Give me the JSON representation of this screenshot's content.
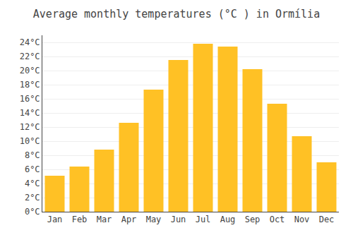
{
  "chart_data": {
    "type": "bar",
    "title": "Average monthly temperatures (°C ) in Ormília",
    "categories": [
      "Jan",
      "Feb",
      "Mar",
      "Apr",
      "May",
      "Jun",
      "Jul",
      "Aug",
      "Sep",
      "Oct",
      "Nov",
      "Dec"
    ],
    "values": [
      5.1,
      6.4,
      8.8,
      12.6,
      17.3,
      21.5,
      23.8,
      23.4,
      20.2,
      15.3,
      10.7,
      7.0
    ],
    "color": "#FFC125",
    "ylim": [
      0,
      25
    ],
    "yticks": [
      {
        "value": 0,
        "label": "0°C"
      },
      {
        "value": 2,
        "label": "2°C"
      },
      {
        "value": 4,
        "label": "4°C"
      },
      {
        "value": 6,
        "label": "6°C"
      },
      {
        "value": 8,
        "label": "8°C"
      },
      {
        "value": 10,
        "label": "10°C"
      },
      {
        "value": 12,
        "label": "12°C"
      },
      {
        "value": 14,
        "label": "14°C"
      },
      {
        "value": 16,
        "label": "16°C"
      },
      {
        "value": 18,
        "label": "18°C"
      },
      {
        "value": 20,
        "label": "20°C"
      },
      {
        "value": 22,
        "label": "22°C"
      },
      {
        "value": 24,
        "label": "24°C"
      }
    ],
    "grid": true
  }
}
